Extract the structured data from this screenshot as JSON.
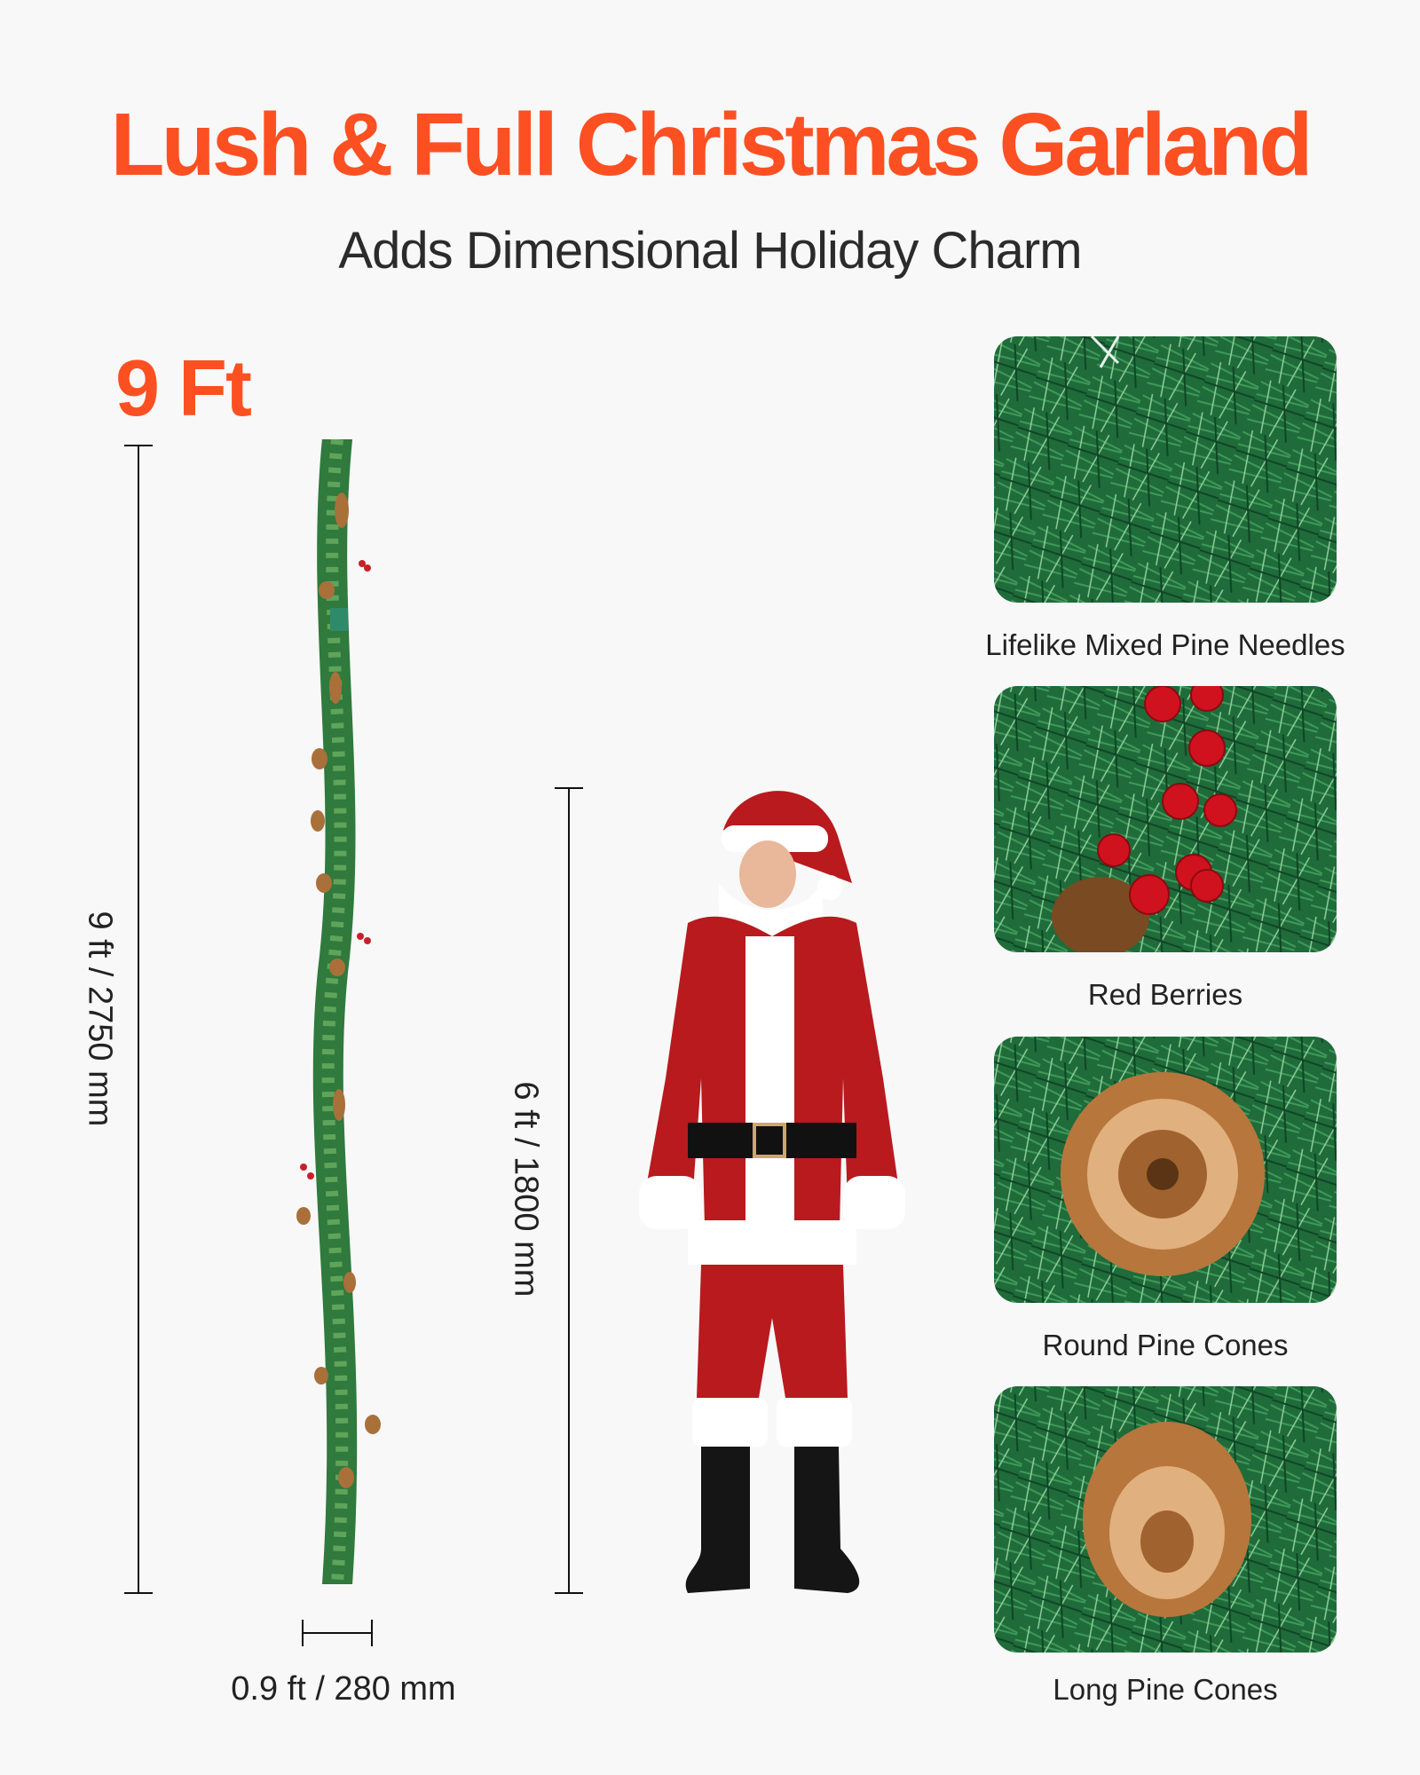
{
  "header": {
    "title": "Lush & Full Christmas Garland",
    "subtitle": "Adds Dimensional Holiday Charm"
  },
  "garland": {
    "length_heading": "9 Ft",
    "length_label": "9 ft / 2750 mm",
    "width_label": "0.9 ft / 280 mm"
  },
  "santa": {
    "height_label": "6 ft / 1800 mm"
  },
  "features": [
    {
      "caption": "Lifelike Mixed Pine Needles",
      "image": "pine-needles-closeup"
    },
    {
      "caption": "Red Berries",
      "image": "red-berries-closeup"
    },
    {
      "caption": "Round Pine Cones",
      "image": "round-pine-cone-closeup"
    },
    {
      "caption": "Long Pine Cones",
      "image": "long-pine-cone-closeup"
    }
  ],
  "colors": {
    "accent": "#fc5022",
    "text": "#222222",
    "background": "#f8f8f8"
  }
}
